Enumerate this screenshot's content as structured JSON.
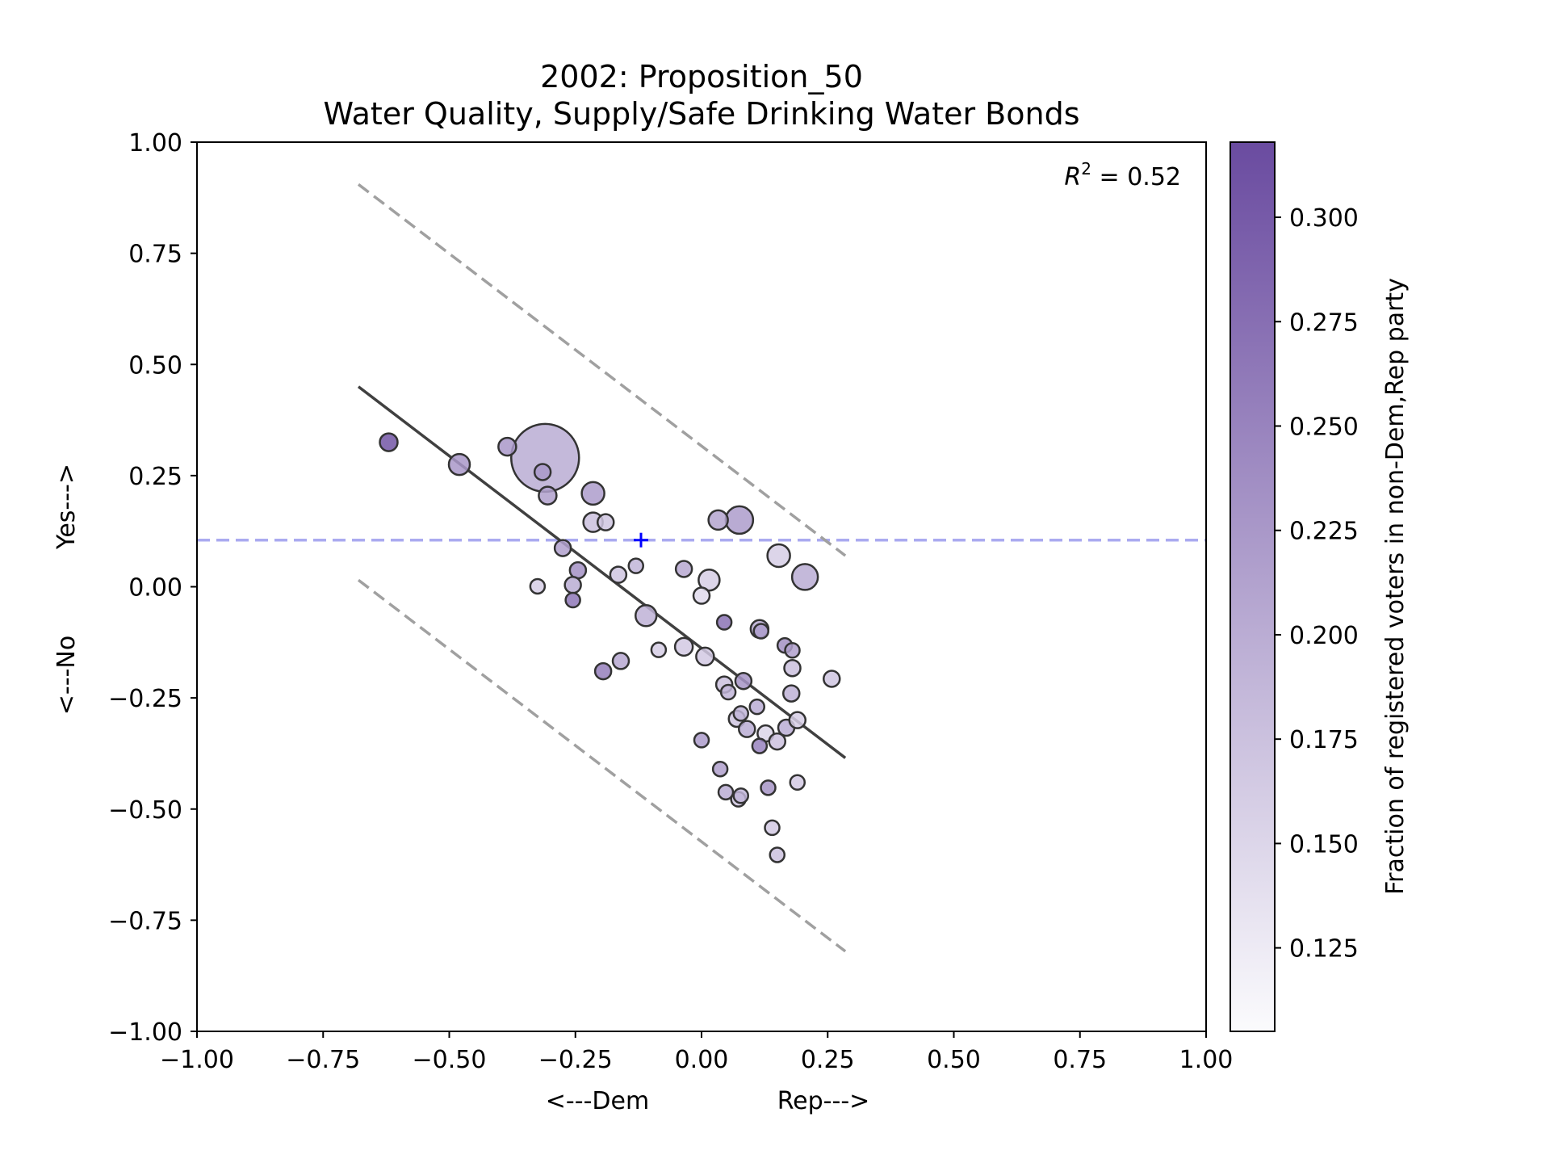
{
  "chart_data": {
    "type": "scatter",
    "title": "2002: Proposition_50",
    "subtitle": "Water Quality, Supply/Safe Drinking Water Bonds",
    "xlabel_left": "<---Dem",
    "xlabel_right": "Rep--->",
    "ylabel_bottom": "<---No",
    "ylabel_top": "Yes--->",
    "xlim": [
      -1.0,
      1.0
    ],
    "ylim": [
      -1.0,
      1.0
    ],
    "xticks": [
      "−1.00",
      "−0.75",
      "−0.50",
      "−0.25",
      "0.00",
      "0.25",
      "0.50",
      "0.75",
      "1.00"
    ],
    "yticks": [
      "−1.00",
      "−0.75",
      "−0.50",
      "−0.25",
      "0.00",
      "0.25",
      "0.50",
      "0.75",
      "1.00"
    ],
    "xtick_values": [
      -1.0,
      -0.75,
      -0.5,
      -0.25,
      0.0,
      0.25,
      0.5,
      0.75,
      1.0
    ],
    "ytick_values": [
      -1.0,
      -0.75,
      -0.5,
      -0.25,
      0.0,
      0.25,
      0.5,
      0.75,
      1.0
    ],
    "annotation_prefix": "R",
    "annotation_sup": "2",
    "annotation_value": " = 0.52",
    "grid": false,
    "fit_line": {
      "x": [
        -0.68,
        0.285
      ],
      "y": [
        0.45,
        -0.385
      ],
      "color": "#404040"
    },
    "upper_band": {
      "x": [
        -0.68,
        0.285
      ],
      "y": [
        0.905,
        0.07
      ],
      "color": "#a0a0a0"
    },
    "lower_band": {
      "x": [
        -0.68,
        0.285
      ],
      "y": [
        0.015,
        -0.82
      ],
      "color": "#a0a0a0"
    },
    "reference_line": {
      "y": 0.105,
      "color": "#aaaaf0"
    },
    "marker": {
      "x": -0.12,
      "y": 0.105,
      "color": "#0000ff"
    },
    "colorbar": {
      "label": "Fraction of registered voters in non-Dem,Rep party",
      "range": [
        0.105,
        0.318
      ],
      "tick_values": [
        0.125,
        0.15,
        0.175,
        0.2,
        0.225,
        0.25,
        0.275,
        0.3
      ],
      "tick_labels": [
        "0.125",
        "0.150",
        "0.175",
        "0.200",
        "0.225",
        "0.250",
        "0.275",
        "0.300"
      ],
      "color_low": "#fbfbfd",
      "color_high": "#6a4ba0"
    },
    "points": [
      {
        "x": -0.62,
        "y": 0.325,
        "r": 11,
        "c": 0.305
      },
      {
        "x": -0.48,
        "y": 0.275,
        "r": 13,
        "c": 0.225
      },
      {
        "x": -0.385,
        "y": 0.315,
        "r": 11,
        "c": 0.225
      },
      {
        "x": -0.31,
        "y": 0.29,
        "r": 42,
        "c": 0.2
      },
      {
        "x": -0.315,
        "y": 0.258,
        "r": 10,
        "c": 0.225
      },
      {
        "x": -0.305,
        "y": 0.205,
        "r": 11,
        "c": 0.215
      },
      {
        "x": -0.215,
        "y": 0.21,
        "r": 14,
        "c": 0.22
      },
      {
        "x": -0.215,
        "y": 0.145,
        "r": 12,
        "c": 0.175
      },
      {
        "x": -0.19,
        "y": 0.145,
        "r": 10,
        "c": 0.17
      },
      {
        "x": -0.275,
        "y": 0.087,
        "r": 10,
        "c": 0.215
      },
      {
        "x": -0.245,
        "y": 0.037,
        "r": 10,
        "c": 0.235
      },
      {
        "x": -0.255,
        "y": 0.004,
        "r": 10,
        "c": 0.2
      },
      {
        "x": -0.325,
        "y": 0.001,
        "r": 9,
        "c": 0.16
      },
      {
        "x": -0.255,
        "y": -0.03,
        "r": 9,
        "c": 0.265
      },
      {
        "x": -0.165,
        "y": 0.027,
        "r": 10,
        "c": 0.17
      },
      {
        "x": -0.13,
        "y": 0.047,
        "r": 9,
        "c": 0.19
      },
      {
        "x": -0.11,
        "y": -0.065,
        "r": 13,
        "c": 0.195
      },
      {
        "x": -0.195,
        "y": -0.19,
        "r": 10,
        "c": 0.255
      },
      {
        "x": -0.16,
        "y": -0.167,
        "r": 10,
        "c": 0.205
      },
      {
        "x": -0.085,
        "y": -0.142,
        "r": 9,
        "c": 0.16
      },
      {
        "x": -0.035,
        "y": -0.135,
        "r": 11,
        "c": 0.165
      },
      {
        "x": -0.035,
        "y": 0.04,
        "r": 10,
        "c": 0.205
      },
      {
        "x": 0.015,
        "y": 0.015,
        "r": 13,
        "c": 0.16
      },
      {
        "x": 0.0,
        "y": -0.02,
        "r": 10,
        "c": 0.145
      },
      {
        "x": 0.007,
        "y": -0.157,
        "r": 11,
        "c": 0.165
      },
      {
        "x": 0.033,
        "y": 0.15,
        "r": 12,
        "c": 0.21
      },
      {
        "x": 0.075,
        "y": 0.15,
        "r": 17,
        "c": 0.22
      },
      {
        "x": 0.045,
        "y": -0.08,
        "r": 9,
        "c": 0.27
      },
      {
        "x": 0.045,
        "y": -0.22,
        "r": 10,
        "c": 0.175
      },
      {
        "x": 0.053,
        "y": -0.237,
        "r": 9,
        "c": 0.19
      },
      {
        "x": 0.083,
        "y": -0.212,
        "r": 10,
        "c": 0.23
      },
      {
        "x": 0.07,
        "y": -0.297,
        "r": 10,
        "c": 0.17
      },
      {
        "x": 0.078,
        "y": -0.285,
        "r": 9,
        "c": 0.19
      },
      {
        "x": 0.09,
        "y": -0.32,
        "r": 10,
        "c": 0.2
      },
      {
        "x": 0.11,
        "y": -0.27,
        "r": 9,
        "c": 0.2
      },
      {
        "x": 0.115,
        "y": -0.095,
        "r": 11,
        "c": 0.2
      },
      {
        "x": 0.118,
        "y": -0.1,
        "r": 9,
        "c": 0.22
      },
      {
        "x": 0.127,
        "y": -0.33,
        "r": 10,
        "c": 0.15
      },
      {
        "x": 0.115,
        "y": -0.358,
        "r": 9,
        "c": 0.25
      },
      {
        "x": 0.15,
        "y": -0.348,
        "r": 10,
        "c": 0.175
      },
      {
        "x": 0.153,
        "y": 0.07,
        "r": 14,
        "c": 0.16
      },
      {
        "x": 0.205,
        "y": 0.022,
        "r": 16,
        "c": 0.2
      },
      {
        "x": 0.165,
        "y": -0.132,
        "r": 9,
        "c": 0.235
      },
      {
        "x": 0.18,
        "y": -0.143,
        "r": 9,
        "c": 0.215
      },
      {
        "x": 0.18,
        "y": -0.183,
        "r": 10,
        "c": 0.175
      },
      {
        "x": 0.178,
        "y": -0.24,
        "r": 10,
        "c": 0.195
      },
      {
        "x": 0.258,
        "y": -0.207,
        "r": 10,
        "c": 0.17
      },
      {
        "x": 0.168,
        "y": -0.317,
        "r": 10,
        "c": 0.2
      },
      {
        "x": 0.19,
        "y": -0.3,
        "r": 10,
        "c": 0.16
      },
      {
        "x": 0.0,
        "y": -0.345,
        "r": 9,
        "c": 0.22
      },
      {
        "x": 0.037,
        "y": -0.41,
        "r": 9,
        "c": 0.215
      },
      {
        "x": 0.048,
        "y": -0.462,
        "r": 9,
        "c": 0.2
      },
      {
        "x": 0.073,
        "y": -0.478,
        "r": 9,
        "c": 0.17
      },
      {
        "x": 0.078,
        "y": -0.47,
        "r": 9,
        "c": 0.19
      },
      {
        "x": 0.132,
        "y": -0.452,
        "r": 9,
        "c": 0.23
      },
      {
        "x": 0.19,
        "y": -0.44,
        "r": 9,
        "c": 0.165
      },
      {
        "x": 0.14,
        "y": -0.542,
        "r": 9,
        "c": 0.165
      },
      {
        "x": 0.15,
        "y": -0.603,
        "r": 9,
        "c": 0.175
      }
    ]
  }
}
